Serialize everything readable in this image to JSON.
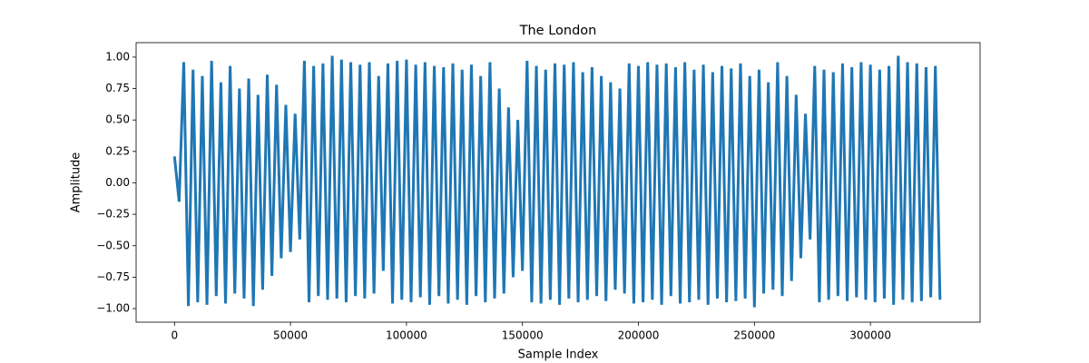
{
  "chart_data": {
    "type": "line",
    "title": "The London",
    "x_label": "Sample Index",
    "y_label": "Amplitude",
    "color": "#1f77b4",
    "grid": false,
    "x": [
      0,
      2000,
      4000,
      6000,
      8000,
      10000,
      12000,
      14000,
      16000,
      18000,
      20000,
      22000,
      24000,
      26000,
      28000,
      30000,
      32000,
      34000,
      36000,
      38000,
      40000,
      42000,
      44000,
      46000,
      48000,
      50000,
      52000,
      54000,
      56000,
      58000,
      60000,
      62000,
      64000,
      66000,
      68000,
      70000,
      72000,
      74000,
      76000,
      78000,
      80000,
      82000,
      84000,
      86000,
      88000,
      90000,
      92000,
      94000,
      96000,
      98000,
      100000,
      102000,
      104000,
      106000,
      108000,
      110000,
      112000,
      114000,
      116000,
      118000,
      120000,
      122000,
      124000,
      126000,
      128000,
      130000,
      132000,
      134000,
      136000,
      138000,
      140000,
      142000,
      144000,
      146000,
      148000,
      150000,
      152000,
      154000,
      156000,
      158000,
      160000,
      162000,
      164000,
      166000,
      168000,
      170000,
      172000,
      174000,
      176000,
      178000,
      180000,
      182000,
      184000,
      186000,
      188000,
      190000,
      192000,
      194000,
      196000,
      198000,
      200000,
      202000,
      204000,
      206000,
      208000,
      210000,
      212000,
      214000,
      216000,
      218000,
      220000,
      222000,
      224000,
      226000,
      228000,
      230000,
      232000,
      234000,
      236000,
      238000,
      240000,
      242000,
      244000,
      246000,
      248000,
      250000,
      252000,
      254000,
      256000,
      258000,
      260000,
      262000,
      264000,
      266000,
      268000,
      270000,
      272000,
      274000,
      276000,
      278000,
      280000,
      282000,
      284000,
      286000,
      288000,
      290000,
      292000,
      294000,
      296000,
      298000,
      300000,
      302000,
      304000,
      306000,
      308000,
      310000,
      312000,
      314000,
      316000,
      318000,
      320000,
      322000,
      324000,
      326000,
      328000,
      330000
    ],
    "values": [
      0.21,
      -0.15,
      0.96,
      -0.98,
      0.9,
      -0.95,
      0.85,
      -0.97,
      0.97,
      -0.9,
      0.8,
      -0.96,
      0.93,
      -0.88,
      0.75,
      -0.92,
      0.83,
      -0.98,
      0.7,
      -0.85,
      0.86,
      -0.74,
      0.78,
      -0.6,
      0.62,
      -0.55,
      0.55,
      -0.45,
      0.97,
      -0.95,
      0.93,
      -0.9,
      0.95,
      -0.93,
      1.01,
      -0.92,
      0.98,
      -0.95,
      0.96,
      -0.9,
      0.94,
      -0.92,
      0.96,
      -0.88,
      0.85,
      -0.7,
      0.95,
      -0.96,
      0.97,
      -0.93,
      0.98,
      -0.95,
      0.94,
      -0.91,
      0.96,
      -0.97,
      0.93,
      -0.9,
      0.92,
      -0.96,
      0.95,
      -0.93,
      0.9,
      -0.97,
      0.94,
      -0.9,
      0.85,
      -0.95,
      0.96,
      -0.92,
      0.75,
      -0.88,
      0.6,
      -0.75,
      0.5,
      -0.7,
      0.97,
      -0.95,
      0.93,
      -0.96,
      0.9,
      -0.93,
      0.95,
      -0.97,
      0.94,
      -0.92,
      0.96,
      -0.95,
      0.88,
      -0.93,
      0.92,
      -0.9,
      0.85,
      -0.94,
      0.8,
      -0.85,
      0.75,
      -0.88,
      0.95,
      -0.96,
      0.93,
      -0.95,
      0.96,
      -0.93,
      0.94,
      -0.97,
      0.95,
      -0.9,
      0.92,
      -0.96,
      0.96,
      -0.95,
      0.9,
      -0.93,
      0.94,
      -0.97,
      0.88,
      -0.92,
      0.93,
      -0.95,
      0.91,
      -0.94,
      0.95,
      -0.92,
      0.85,
      -0.99,
      0.9,
      -0.88,
      0.8,
      -0.85,
      0.96,
      -0.9,
      0.85,
      -0.78,
      0.7,
      -0.6,
      0.55,
      -0.45,
      0.93,
      -0.95,
      0.9,
      -0.93,
      0.88,
      -0.9,
      0.95,
      -0.94,
      0.92,
      -0.91,
      0.96,
      -0.93,
      0.94,
      -0.95,
      0.9,
      -0.92,
      0.93,
      -0.97,
      1.01,
      -0.93,
      0.96,
      -0.95,
      0.95,
      -0.94,
      0.92,
      -0.91,
      0.93,
      -0.93
    ],
    "xlim": [
      -16537.5,
      347287.5
    ],
    "xticks": [
      0,
      50000,
      100000,
      150000,
      200000,
      250000,
      300000
    ],
    "ylim": [
      -1.108,
      1.115
    ],
    "yticks": [
      {
        "value": -1,
        "label": "−1.00"
      },
      {
        "value": -0.75,
        "label": "−0.75"
      },
      {
        "value": -0.5,
        "label": "−0.50"
      },
      {
        "value": -0.25,
        "label": "−0.25"
      },
      {
        "value": 0,
        "label": "0.00"
      },
      {
        "value": 0.25,
        "label": "0.25"
      },
      {
        "value": 0.5,
        "label": "0.50"
      },
      {
        "value": 0.75,
        "label": "0.75"
      },
      {
        "value": 1,
        "label": "1.00"
      }
    ]
  }
}
